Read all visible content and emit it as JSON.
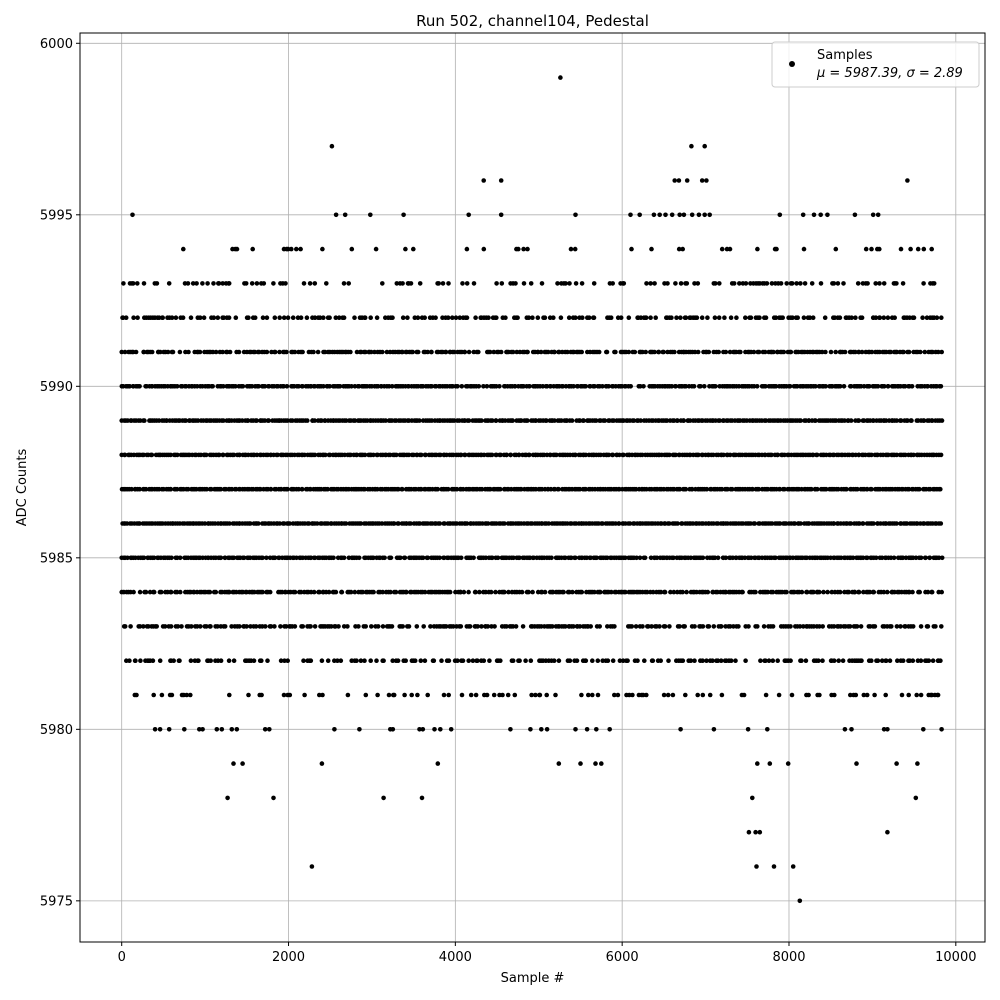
{
  "chart_data": {
    "type": "scatter",
    "title": "Run 502, channel104, Pedestal",
    "xlabel": "Sample #",
    "ylabel": "ADC Counts",
    "xlim": [
      -500,
      10350
    ],
    "ylim": [
      5973.8,
      6000.3
    ],
    "x_ticks": [
      0,
      2000,
      4000,
      6000,
      8000,
      10000
    ],
    "y_ticks": [
      5975,
      5980,
      5985,
      5990,
      5995,
      6000
    ],
    "grid": true,
    "legend": {
      "placement": "top-right",
      "entries": [
        {
          "label": "Samples",
          "stat": "μ = 5987.39, σ = 2.89",
          "marker": "circle",
          "color": "#000000"
        }
      ]
    },
    "series": [
      {
        "name": "Samples",
        "color": "#000000",
        "marker": "circle",
        "n_samples": 9840,
        "mean": 5987.39,
        "sigma": 2.89,
        "bands": [
          {
            "y": 5981,
            "x_ranges": [
              [
                0,
                9840
              ]
            ],
            "density": 0.25
          },
          {
            "y": 5982,
            "x_ranges": [
              [
                0,
                9840
              ]
            ],
            "density": 0.45
          },
          {
            "y": 5983,
            "x_ranges": [
              [
                0,
                9840
              ]
            ],
            "density": 0.7
          },
          {
            "y": 5984,
            "x_ranges": [
              [
                0,
                9840
              ]
            ],
            "density": 0.85
          },
          {
            "y": 5985,
            "x_ranges": [
              [
                0,
                9840
              ]
            ],
            "density": 0.95
          },
          {
            "y": 5986,
            "x_ranges": [
              [
                0,
                9840
              ]
            ],
            "density": 1.0
          },
          {
            "y": 5987,
            "x_ranges": [
              [
                0,
                9840
              ]
            ],
            "density": 1.0
          },
          {
            "y": 5988,
            "x_ranges": [
              [
                0,
                9840
              ]
            ],
            "density": 1.0
          },
          {
            "y": 5989,
            "x_ranges": [
              [
                0,
                9840
              ]
            ],
            "density": 0.97
          },
          {
            "y": 5990,
            "x_ranges": [
              [
                0,
                9840
              ]
            ],
            "density": 0.92
          },
          {
            "y": 5991,
            "x_ranges": [
              [
                0,
                9840
              ]
            ],
            "density": 0.82
          },
          {
            "y": 5992,
            "x_ranges": [
              [
                0,
                9840
              ]
            ],
            "density": 0.55
          },
          {
            "y": 5993,
            "x_ranges": [
              [
                0,
                9840
              ]
            ],
            "density": 0.35
          },
          {
            "y": 5994,
            "x_ranges": [
              [
                0,
                9840
              ]
            ],
            "density": 0.12
          }
        ],
        "sparse_points": [
          [
            1270,
            5978
          ],
          [
            1340,
            5979
          ],
          [
            1450,
            5979
          ],
          [
            1820,
            5978
          ],
          [
            2280,
            5976
          ],
          [
            2400,
            5979
          ],
          [
            3140,
            5978
          ],
          [
            3600,
            5978
          ],
          [
            3790,
            5979
          ],
          [
            5240,
            5979
          ],
          [
            5500,
            5979
          ],
          [
            5680,
            5979
          ],
          [
            5750,
            5979
          ],
          [
            7560,
            5978
          ],
          [
            7520,
            5977
          ],
          [
            7600,
            5977
          ],
          [
            7650,
            5977
          ],
          [
            7610,
            5976
          ],
          [
            7620,
            5979
          ],
          [
            7770,
            5979
          ],
          [
            7820,
            5976
          ],
          [
            7990,
            5979
          ],
          [
            8050,
            5976
          ],
          [
            8130,
            5975
          ],
          [
            8810,
            5979
          ],
          [
            9180,
            5977
          ],
          [
            9290,
            5979
          ],
          [
            9520,
            5978
          ],
          [
            9540,
            5979
          ],
          [
            400,
            5980
          ],
          [
            460,
            5980
          ],
          [
            570,
            5980
          ],
          [
            750,
            5980
          ],
          [
            930,
            5980
          ],
          [
            970,
            5980
          ],
          [
            1140,
            5980
          ],
          [
            1200,
            5980
          ],
          [
            1320,
            5980
          ],
          [
            1380,
            5980
          ],
          [
            1720,
            5980
          ],
          [
            1770,
            5980
          ],
          [
            2550,
            5980
          ],
          [
            2850,
            5980
          ],
          [
            3220,
            5980
          ],
          [
            3250,
            5980
          ],
          [
            3570,
            5980
          ],
          [
            3610,
            5980
          ],
          [
            3750,
            5980
          ],
          [
            3820,
            5980
          ],
          [
            3950,
            5980
          ],
          [
            4660,
            5980
          ],
          [
            4900,
            5980
          ],
          [
            5030,
            5980
          ],
          [
            5100,
            5980
          ],
          [
            5440,
            5980
          ],
          [
            5580,
            5980
          ],
          [
            5690,
            5980
          ],
          [
            5850,
            5980
          ],
          [
            6700,
            5980
          ],
          [
            7100,
            5980
          ],
          [
            7510,
            5980
          ],
          [
            7740,
            5980
          ],
          [
            8670,
            5980
          ],
          [
            8750,
            5980
          ],
          [
            9140,
            5980
          ],
          [
            9180,
            5980
          ],
          [
            9610,
            5980
          ],
          [
            9830,
            5980
          ],
          [
            130,
            5995
          ],
          [
            2570,
            5995
          ],
          [
            2680,
            5995
          ],
          [
            2980,
            5995
          ],
          [
            3380,
            5995
          ],
          [
            4160,
            5995
          ],
          [
            4550,
            5995
          ],
          [
            5440,
            5995
          ],
          [
            6100,
            5995
          ],
          [
            6210,
            5995
          ],
          [
            6380,
            5995
          ],
          [
            6450,
            5995
          ],
          [
            6520,
            5995
          ],
          [
            6600,
            5995
          ],
          [
            6690,
            5995
          ],
          [
            6740,
            5995
          ],
          [
            6840,
            5995
          ],
          [
            6920,
            5995
          ],
          [
            6990,
            5995
          ],
          [
            7050,
            5995
          ],
          [
            7890,
            5995
          ],
          [
            8170,
            5995
          ],
          [
            8300,
            5995
          ],
          [
            8380,
            5995
          ],
          [
            8460,
            5995
          ],
          [
            8790,
            5995
          ],
          [
            9010,
            5995
          ],
          [
            9070,
            5995
          ],
          [
            4340,
            5996
          ],
          [
            4550,
            5996
          ],
          [
            6630,
            5996
          ],
          [
            6680,
            5996
          ],
          [
            6780,
            5996
          ],
          [
            6960,
            5996
          ],
          [
            7010,
            5996
          ],
          [
            9420,
            5996
          ],
          [
            2520,
            5997
          ],
          [
            6830,
            5997
          ],
          [
            6990,
            5997
          ],
          [
            5260,
            5999
          ]
        ]
      }
    ]
  }
}
